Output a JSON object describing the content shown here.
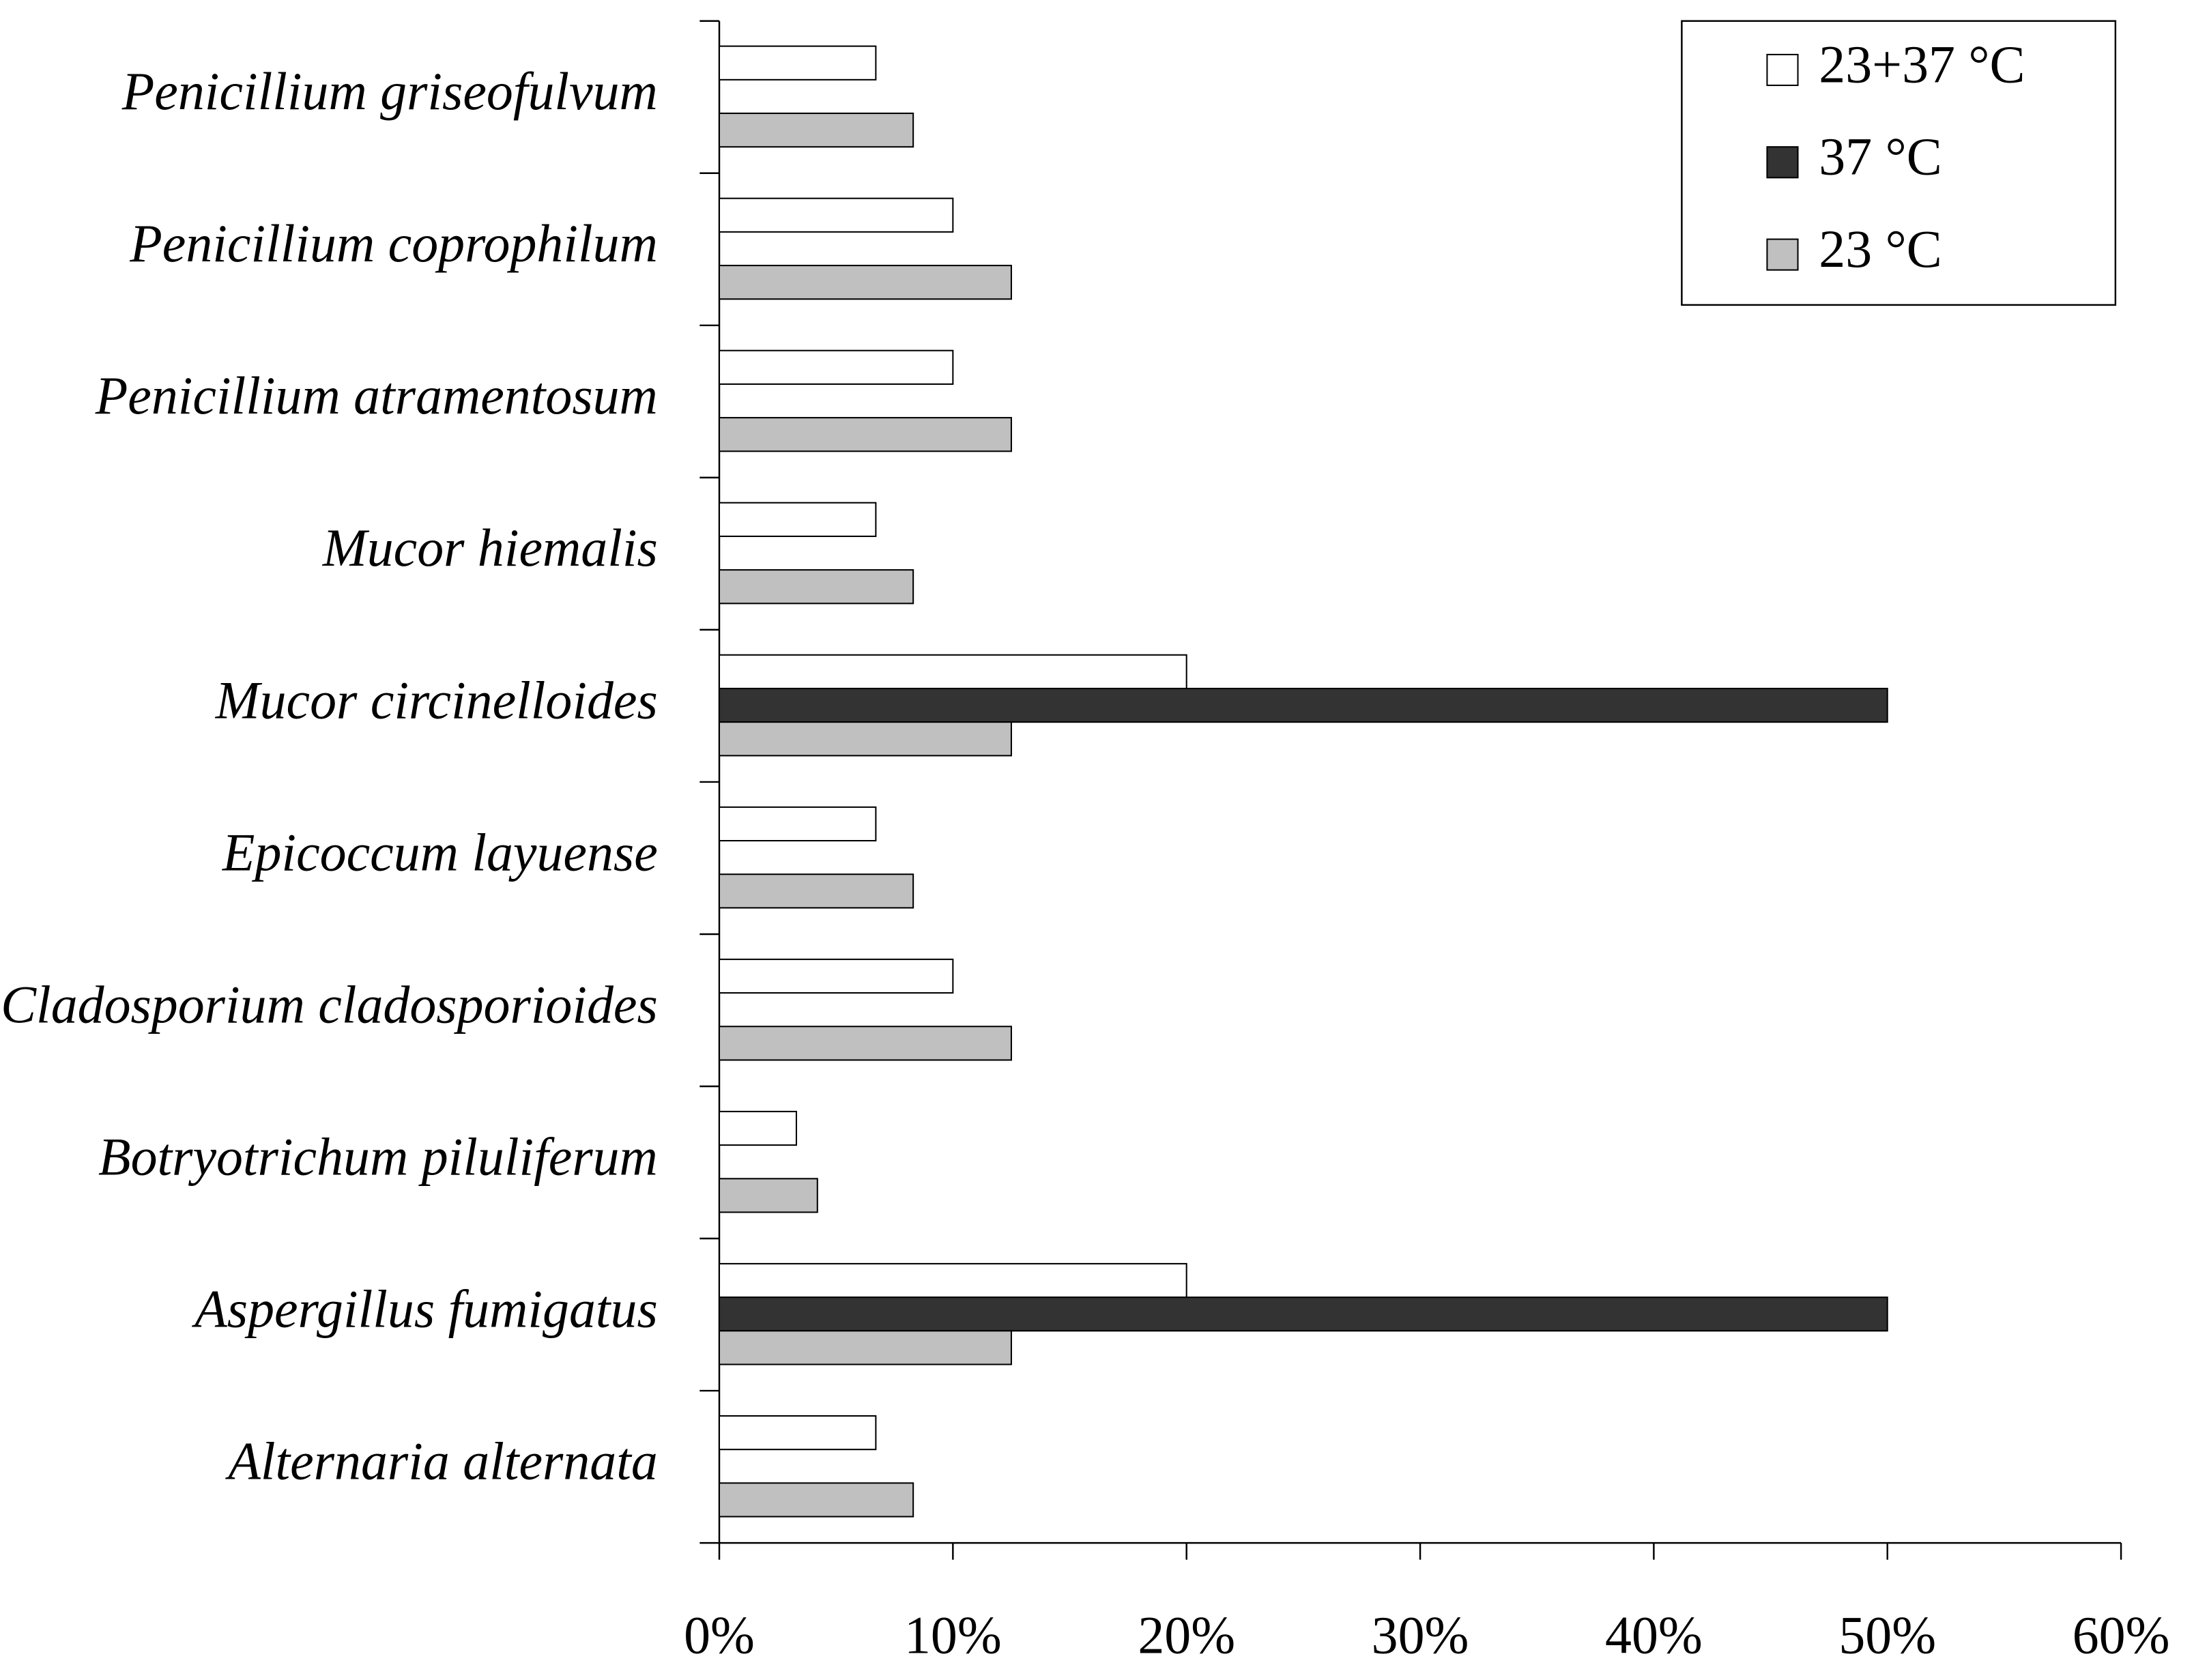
{
  "chart_data": {
    "type": "bar",
    "orientation": "horizontal",
    "categories": [
      "Penicillium griseofulvum",
      "Penicillium coprophilum",
      "Penicillium atramentosum",
      "Mucor hiemalis",
      "Mucor circinelloides",
      "Epicoccum layuense",
      "Cladosporium cladosporioides",
      "Botryotrichum piluliferum",
      "Aspergillus fumigatus",
      "Alternaria alternata"
    ],
    "series": [
      {
        "name": "23+37 °C",
        "color": "#ffffff",
        "values": [
          6.7,
          10,
          10,
          6.7,
          20,
          6.7,
          10,
          3.3,
          20,
          6.7
        ]
      },
      {
        "name": "37 °C",
        "color": "#333333",
        "values": [
          0,
          0,
          0,
          0,
          50,
          0,
          0,
          0,
          50,
          0
        ]
      },
      {
        "name": "23  °C",
        "color": "#c0c0c0",
        "values": [
          8.3,
          12.5,
          12.5,
          8.3,
          12.5,
          8.3,
          12.5,
          4.2,
          12.5,
          8.3
        ]
      }
    ],
    "xlim": [
      0,
      60
    ],
    "xticks": [
      {
        "value": 0,
        "label": "0%"
      },
      {
        "value": 10,
        "label": "10%"
      },
      {
        "value": 20,
        "label": "20%"
      },
      {
        "value": 30,
        "label": "30%"
      },
      {
        "value": 40,
        "label": "40%"
      },
      {
        "value": 50,
        "label": "50%"
      },
      {
        "value": 60,
        "label": "60%"
      }
    ],
    "legend": "top-right"
  }
}
